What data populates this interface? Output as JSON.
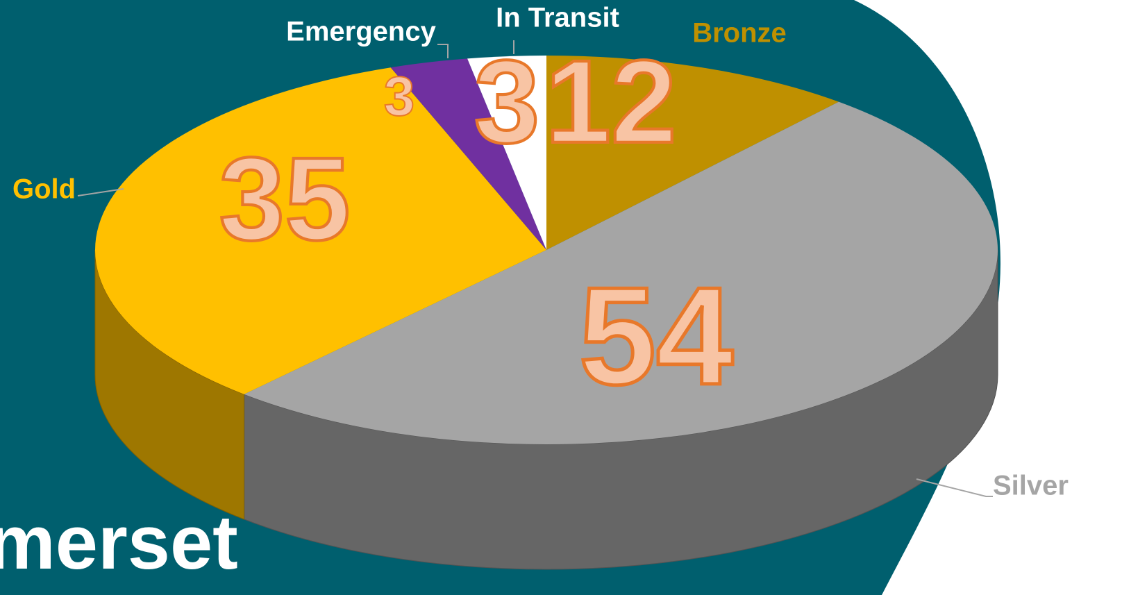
{
  "brand_text": "merset",
  "chart_data": {
    "type": "pie3d",
    "categories": [
      "Bronze",
      "Silver",
      "Gold",
      "Emergency",
      "In Transit"
    ],
    "values": [
      12,
      54,
      35,
      3,
      3
    ],
    "colors": [
      "#bf9000",
      "#a5a5a5",
      "#ffc000",
      "#7030a0",
      "#ffffff"
    ],
    "label_colors": [
      "#bf9000",
      "#a5a5a5",
      "#ffc000",
      "#ffffff",
      "#ffffff"
    ]
  }
}
